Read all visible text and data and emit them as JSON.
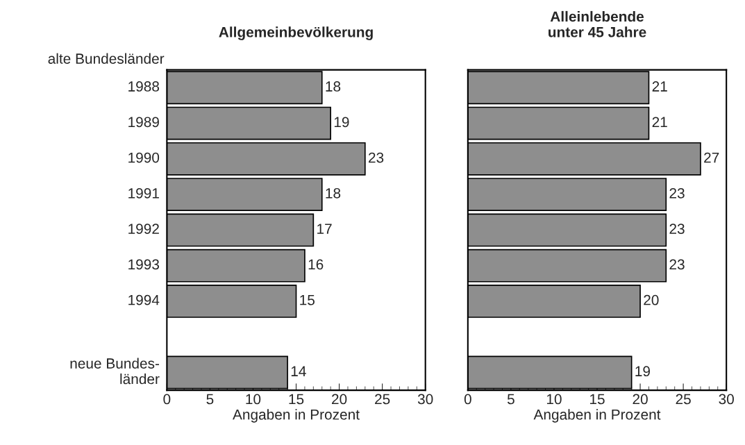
{
  "chart_data": [
    {
      "type": "bar",
      "orientation": "horizontal",
      "title": "Allgemeinbevölkerung",
      "xlabel": "Angaben in Prozent",
      "categories": [
        "1988",
        "1989",
        "1990",
        "1991",
        "1992",
        "1993",
        "1994",
        null,
        "neue Bundes-\nländer"
      ],
      "values": [
        18,
        19,
        23,
        18,
        17,
        16,
        15,
        null,
        14
      ],
      "color": "#8e8e8e",
      "xlim": [
        0,
        30
      ],
      "xticks": [
        0,
        5,
        10,
        15,
        20,
        25,
        30
      ],
      "data_labels": true,
      "grid": false,
      "annotations": [
        "alte Bundesländer"
      ]
    },
    {
      "type": "bar",
      "orientation": "horizontal",
      "title": "Alleinlebende\nunter 45 Jahre",
      "xlabel": "Angaben in Prozent",
      "categories": [
        null,
        null,
        null,
        null,
        null,
        null,
        null,
        null,
        null
      ],
      "values": [
        21,
        21,
        27,
        23,
        23,
        23,
        20,
        null,
        19
      ],
      "color": "#8e8e8e",
      "xlim": [
        0,
        30
      ],
      "xticks": [
        0,
        5,
        10,
        15,
        20,
        25,
        30
      ],
      "data_labels": true,
      "grid": false,
      "tick_labels": "x"
    }
  ]
}
